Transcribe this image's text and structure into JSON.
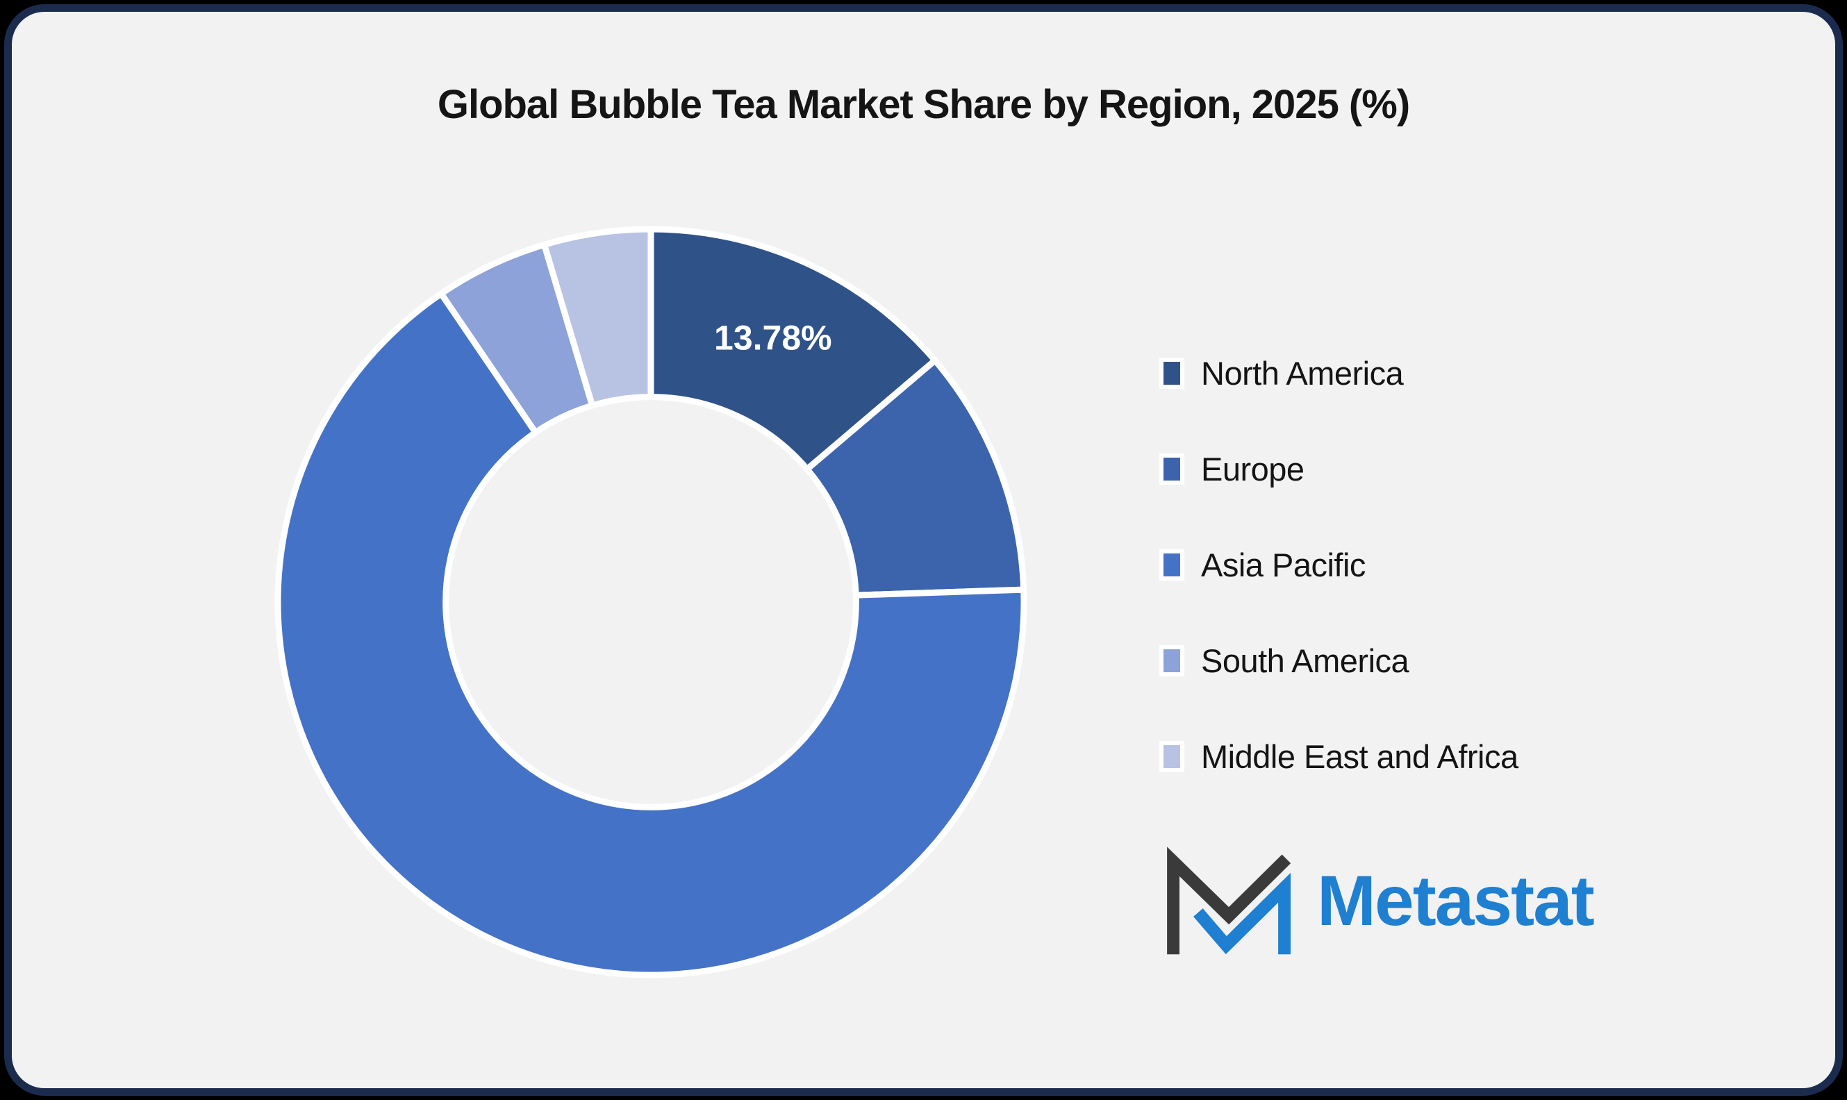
{
  "page_title": "Global Bubble Tea Market Share by Region, 2025 (%)",
  "chart_data": {
    "type": "donut",
    "title": "Global Bubble Tea Market Share by Region, 2025 (%)",
    "categories": [
      "North America",
      "Europe",
      "Asia Pacific",
      "South America",
      "Middle East and Africa"
    ],
    "values": [
      13.78,
      10.69,
      66.03,
      4.89,
      4.61
    ],
    "unit": "%",
    "colors": [
      "#2f5289",
      "#3b64ac",
      "#4472c7",
      "#8ca2d8",
      "#b8c3e4"
    ],
    "data_labels": [
      "13.78%",
      "",
      "",
      "",
      ""
    ],
    "start_angle_deg": 0,
    "direction": "clockwise",
    "inner_radius_ratio": 0.55,
    "slice_border_color": "#ffffff",
    "legend_position": "right",
    "grid": false
  },
  "branding": {
    "wordmark": "Metastat",
    "wordmark_color": "#1f7fd1",
    "mark_dark_color": "#3a3a3b"
  },
  "style": {
    "card_background": "#f2f2f2",
    "card_border_color": "#1b2b4d",
    "data_label_color": "#ffffff"
  }
}
